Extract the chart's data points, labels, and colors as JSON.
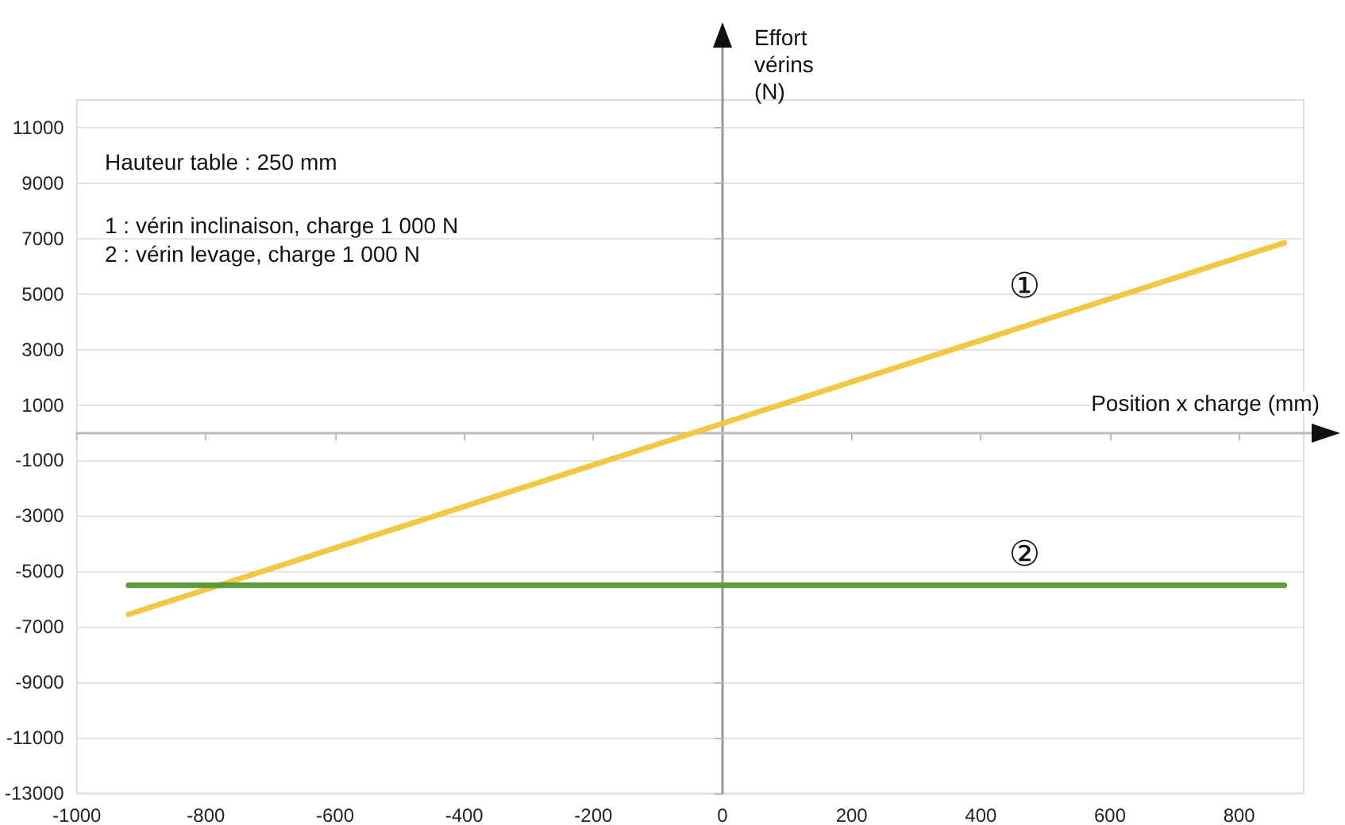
{
  "chart_data": {
    "type": "line",
    "xlabel": "Position x charge (mm)",
    "ylabel": "Effort vérins (N)",
    "annotations": [
      "Hauteur table : 250 mm",
      "1 : vérin inclinaison, charge 1 000 N",
      "2 : vérin levage, charge 1 000 N",
      "①",
      "②"
    ],
    "x": [
      -920,
      870
    ],
    "series": [
      {
        "color": "#f2c744",
        "values": [
          -6550,
          6850
        ]
      },
      {
        "color": "#5b9b3c",
        "values": [
          -5500,
          -5500
        ]
      }
    ],
    "xlim": [
      -1000,
      900
    ],
    "ylim": [
      -13000,
      12000
    ],
    "xticks": [
      -1000,
      -800,
      -600,
      -400,
      -200,
      0,
      200,
      400,
      600,
      800
    ],
    "yticks": [
      -13000,
      -11000,
      -9000,
      -7000,
      -5000,
      -3000,
      -1000,
      1000,
      3000,
      5000,
      7000,
      9000,
      11000
    ],
    "grid": "y",
    "marker": "none"
  }
}
